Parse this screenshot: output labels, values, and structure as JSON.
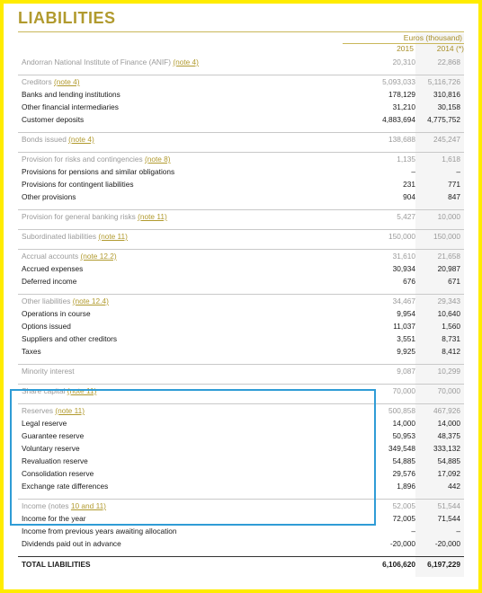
{
  "title": "LIABILITIES",
  "header": {
    "unit": "Euros (thousand)",
    "year1": "2015",
    "year2": "2014 (*)"
  },
  "rows": [
    {
      "label": "Andorran National Institute of Finance (ANIF) ",
      "note": "(note 4)",
      "v1": "20,310",
      "v2": "22,868",
      "style": "grey"
    },
    {
      "label": "Creditors ",
      "note": "(note 4)",
      "v1": "5,093,033",
      "v2": "5,116,726",
      "style": "grey gap sep"
    },
    {
      "label": "Banks and lending institutions",
      "note": "",
      "v1": "178,129",
      "v2": "310,816",
      "style": ""
    },
    {
      "label": "Other financial intermediaries",
      "note": "",
      "v1": "31,210",
      "v2": "30,158",
      "style": ""
    },
    {
      "label": "Customer deposits",
      "note": "",
      "v1": "4,883,694",
      "v2": "4,775,752",
      "style": ""
    },
    {
      "label": "Bonds issued ",
      "note": "(note 4)",
      "v1": "138,688",
      "v2": "245,247",
      "style": "grey gap sep"
    },
    {
      "label": "Provision for risks and contingencies ",
      "note": "(note 8)",
      "v1": "1,135",
      "v2": "1,618",
      "style": "grey gap sep"
    },
    {
      "label": "Provisions for pensions and similar obligations",
      "note": "",
      "v1": "–",
      "v2": "–",
      "style": ""
    },
    {
      "label": "Provisions for contingent liabilities",
      "note": "",
      "v1": "231",
      "v2": "771",
      "style": ""
    },
    {
      "label": "Other provisions",
      "note": "",
      "v1": "904",
      "v2": "847",
      "style": ""
    },
    {
      "label": "Provision for general banking risks ",
      "note": "(note 11)",
      "v1": "5,427",
      "v2": "10,000",
      "style": "grey gap sep"
    },
    {
      "label": "Subordinated liabilities ",
      "note": "(note 11)",
      "v1": "150,000",
      "v2": "150,000",
      "style": "grey gap sep"
    },
    {
      "label": "Accrual accounts ",
      "note": "(note 12.2)",
      "v1": "31,610",
      "v2": "21,658",
      "style": "grey gap sep"
    },
    {
      "label": "Accrued expenses",
      "note": "",
      "v1": "30,934",
      "v2": "20,987",
      "style": ""
    },
    {
      "label": "Deferred income",
      "note": "",
      "v1": "676",
      "v2": "671",
      "style": ""
    },
    {
      "label": "Other liabilities ",
      "note": "(note 12.4)",
      "v1": "34,467",
      "v2": "29,343",
      "style": "grey gap sep"
    },
    {
      "label": "Operations in course",
      "note": "",
      "v1": "9,954",
      "v2": "10,640",
      "style": ""
    },
    {
      "label": "Options issued",
      "note": "",
      "v1": "11,037",
      "v2": "1,560",
      "style": ""
    },
    {
      "label": "Suppliers and other creditors",
      "note": "",
      "v1": "3,551",
      "v2": "8,731",
      "style": ""
    },
    {
      "label": "Taxes",
      "note": "",
      "v1": "9,925",
      "v2": "8,412",
      "style": ""
    },
    {
      "label": "Minority interest",
      "note": "",
      "v1": "9,087",
      "v2": "10,299",
      "style": "grey gap sep"
    },
    {
      "label": "Share capital ",
      "note": "(note 11)",
      "v1": "70,000",
      "v2": "70,000",
      "style": "grey gap sep"
    },
    {
      "label": "Reserves ",
      "note": "(note 11)",
      "v1": "500,858",
      "v2": "467,926",
      "style": "grey gap sep"
    },
    {
      "label": "Legal reserve",
      "note": "",
      "v1": "14,000",
      "v2": "14,000",
      "style": ""
    },
    {
      "label": "Guarantee reserve",
      "note": "",
      "v1": "50,953",
      "v2": "48,375",
      "style": ""
    },
    {
      "label": "Voluntary reserve",
      "note": "",
      "v1": "349,548",
      "v2": "333,132",
      "style": ""
    },
    {
      "label": "Revaluation reserve",
      "note": "",
      "v1": "54,885",
      "v2": "54,885",
      "style": ""
    },
    {
      "label": "Consolidation reserve",
      "note": "",
      "v1": "29,576",
      "v2": "17,092",
      "style": ""
    },
    {
      "label": "Exchange rate differences",
      "note": "",
      "v1": "1,896",
      "v2": "442",
      "style": ""
    },
    {
      "label": "Income (notes ",
      "note": "10 and 11)",
      "v1": "52,005",
      "v2": "51,544",
      "style": "grey gap sep"
    },
    {
      "label": "Income for the year",
      "note": "",
      "v1": "72,005",
      "v2": "71,544",
      "style": ""
    },
    {
      "label": "Income from previous years awaiting allocation",
      "note": "",
      "v1": "–",
      "v2": "–",
      "style": ""
    },
    {
      "label": "Dividends paid out in advance",
      "note": "",
      "v1": "-20,000",
      "v2": "-20,000",
      "style": ""
    },
    {
      "label": "TOTAL LIABILITIES",
      "note": "",
      "v1": "6,106,620",
      "v2": "6,197,229",
      "style": "bold total gap"
    }
  ]
}
